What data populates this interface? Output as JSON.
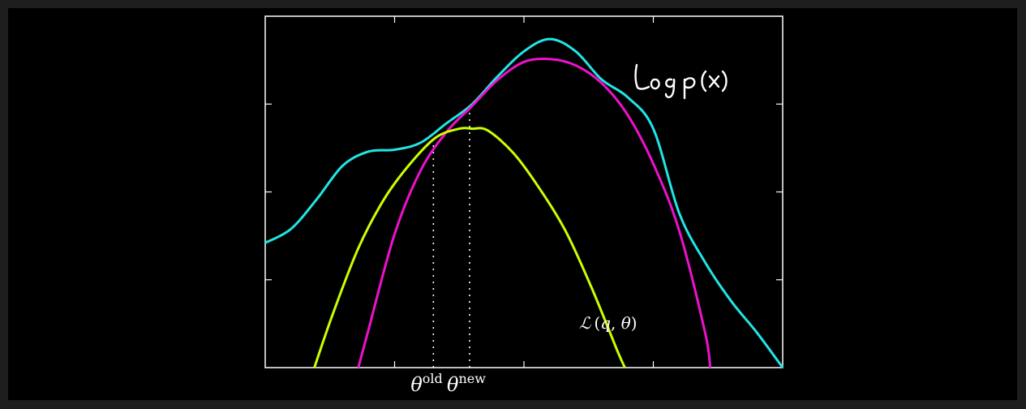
{
  "chart_data": {
    "type": "line",
    "title": "",
    "xlabel": "",
    "ylabel": "",
    "grid": false,
    "xlim": [
      0,
      1
    ],
    "ylim": [
      0,
      1
    ],
    "x_tick_labels": [
      {
        "text": "θ",
        "sup": "old",
        "x": 0.325
      },
      {
        "text": "θ",
        "sup": "new",
        "x": 0.395
      }
    ],
    "series": [
      {
        "name": "log p(x)",
        "color": "#22e5e5",
        "x": [
          0.0,
          0.05,
          0.1,
          0.15,
          0.2,
          0.25,
          0.3,
          0.35,
          0.4,
          0.45,
          0.5,
          0.55,
          0.6,
          0.65,
          0.7,
          0.75,
          0.8,
          0.85,
          0.9,
          0.95,
          1.0
        ],
        "y": [
          0.355,
          0.395,
          0.48,
          0.575,
          0.615,
          0.62,
          0.64,
          0.695,
          0.75,
          0.83,
          0.9,
          0.935,
          0.9,
          0.82,
          0.77,
          0.68,
          0.44,
          0.3,
          0.19,
          0.1,
          0.0
        ]
      },
      {
        "name": "",
        "color": "#ee11cc",
        "x": [
          0.18,
          0.2,
          0.25,
          0.3,
          0.35,
          0.4,
          0.45,
          0.5,
          0.55,
          0.6,
          0.65,
          0.7,
          0.75,
          0.8,
          0.85,
          0.86
        ],
        "y": [
          0.0,
          0.11,
          0.38,
          0.56,
          0.67,
          0.745,
          0.82,
          0.87,
          0.878,
          0.86,
          0.81,
          0.72,
          0.58,
          0.39,
          0.1,
          0.0
        ]
      },
      {
        "name": "L (q, θ)",
        "color": "#ccff00",
        "x": [
          0.095,
          0.13,
          0.18,
          0.23,
          0.28,
          0.33,
          0.375,
          0.4,
          0.43,
          0.48,
          0.53,
          0.58,
          0.63,
          0.68,
          0.695
        ],
        "y": [
          0.0,
          0.15,
          0.34,
          0.48,
          0.58,
          0.655,
          0.68,
          0.68,
          0.675,
          0.61,
          0.51,
          0.39,
          0.23,
          0.05,
          0.0
        ]
      }
    ],
    "vlines": [
      0.325,
      0.395
    ],
    "annotations": [
      {
        "text": "log p(x)",
        "style": "handwritten",
        "color": "#ffffff"
      },
      {
        "text": "L (q, θ)",
        "color": "#ffffff"
      }
    ]
  }
}
